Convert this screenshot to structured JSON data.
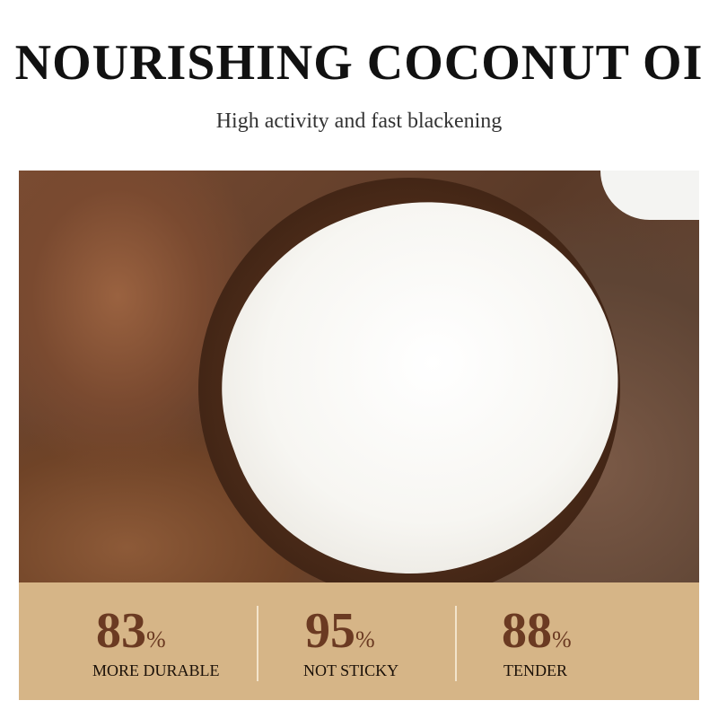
{
  "header": {
    "title": "NOURISHING COCONUT OI",
    "subtitle": "High activity and fast blackening"
  },
  "stats": [
    {
      "value": "83",
      "unit": "%",
      "label": "MORE DURABLE"
    },
    {
      "value": "95",
      "unit": "%",
      "label": "NOT STICKY"
    },
    {
      "value": "88",
      "unit": "%",
      "label": "TENDER"
    }
  ],
  "colors": {
    "panel": "#d6b587",
    "number": "#6b3a22",
    "label": "#1a1008"
  }
}
